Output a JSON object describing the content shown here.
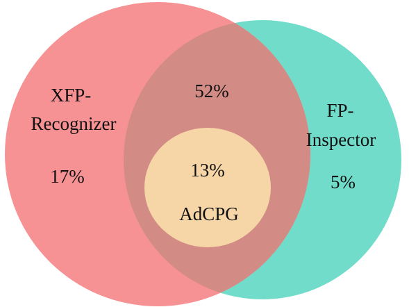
{
  "sets": [
    {
      "label": [
        "XFP-",
        "Recognizer"
      ],
      "value": "17%"
    },
    {
      "label": [
        "FP-",
        "Inspector"
      ],
      "value": "5%"
    }
  ],
  "intersection": {
    "value": "52%"
  },
  "inner": {
    "value": "13%",
    "label": "AdCPG"
  }
}
